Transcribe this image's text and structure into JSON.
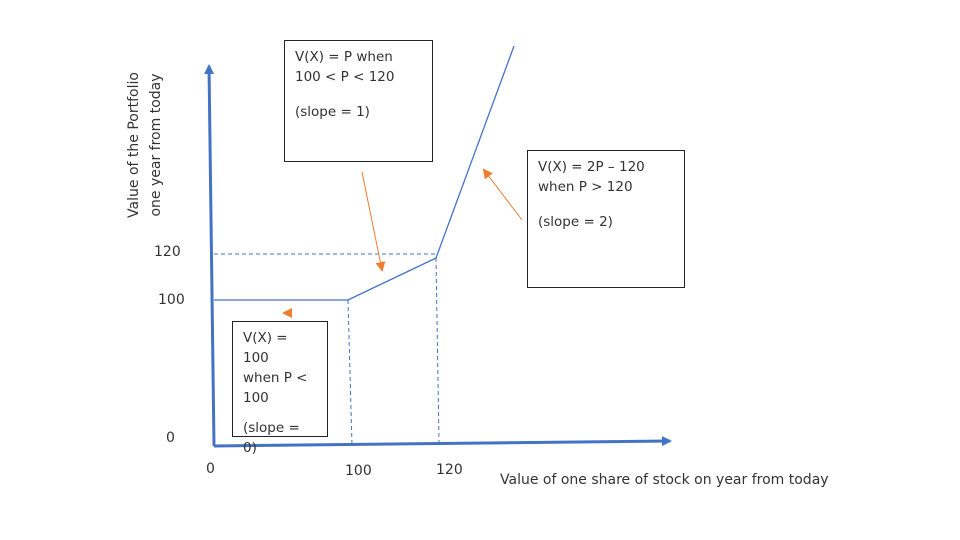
{
  "diagram": {
    "y_axis_label_line1": "Value of the Portfolio",
    "y_axis_label_line2": "one year from today",
    "x_axis_label": "Value of one share of stock on year from today",
    "y_ticks": {
      "t120": "120",
      "t100": "100",
      "t0": "0"
    },
    "x_ticks": {
      "t0": "0",
      "t100": "100",
      "t120": "120"
    },
    "boxes": {
      "middle": {
        "line1": "V(X) = P when",
        "line2": "100 < P < 120",
        "slope": "(slope = 1)"
      },
      "upper": {
        "line1": "V(X) = 2P – 120",
        "line2": "when P > 120",
        "slope": "(slope = 2)"
      },
      "lower": {
        "line1": "V(X) = 100",
        "line2": "when P <",
        "line3": "100",
        "slope": "(slope = 0)"
      }
    },
    "colors": {
      "axis": "#4472c4",
      "line": "#4472c4",
      "arrow": "#ed7d31",
      "box_border": "#222222"
    }
  }
}
